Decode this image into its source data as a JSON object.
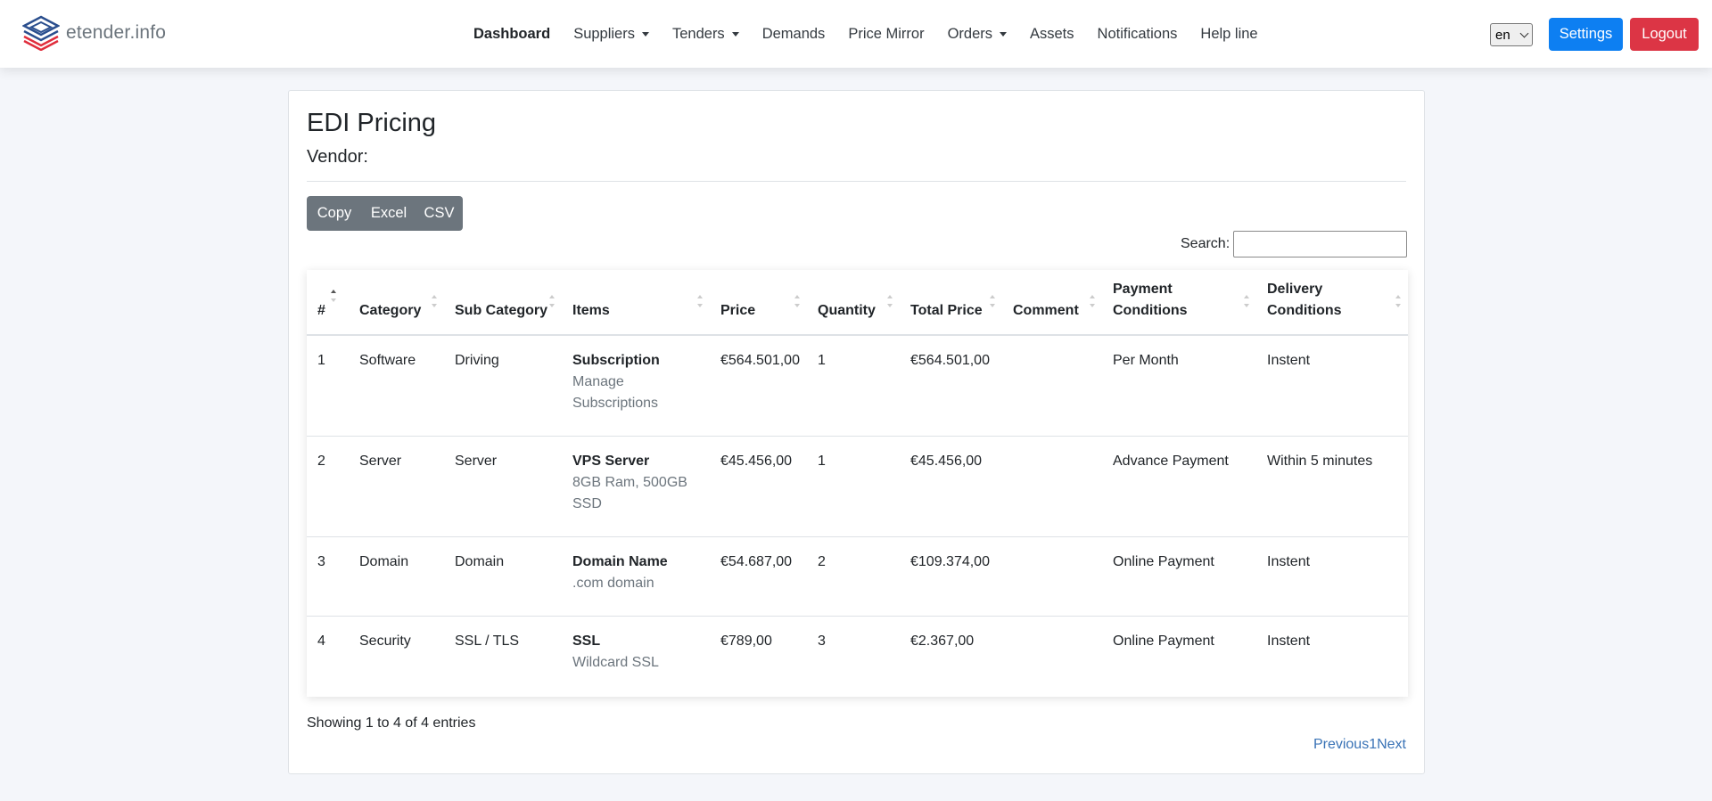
{
  "brand": {
    "name": "etender.info"
  },
  "nav": {
    "items": [
      {
        "label": "Dashboard",
        "active": true,
        "dropdown": false
      },
      {
        "label": "Suppliers",
        "active": false,
        "dropdown": true
      },
      {
        "label": "Tenders",
        "active": false,
        "dropdown": true
      },
      {
        "label": "Demands",
        "active": false,
        "dropdown": false
      },
      {
        "label": "Price Mirror",
        "active": false,
        "dropdown": false
      },
      {
        "label": "Orders",
        "active": false,
        "dropdown": true
      },
      {
        "label": "Assets",
        "active": false,
        "dropdown": false
      },
      {
        "label": "Notifications",
        "active": false,
        "dropdown": false
      },
      {
        "label": "Help line",
        "active": false,
        "dropdown": false
      }
    ],
    "language": "en",
    "settings_label": "Settings",
    "logout_label": "Logout"
  },
  "page": {
    "title": "EDI Pricing",
    "vendor_label": "Vendor:",
    "export_buttons": [
      "Copy",
      "Excel",
      "CSV"
    ],
    "search_label": "Search:",
    "search_value": ""
  },
  "table": {
    "columns": [
      "#",
      "Category",
      "Sub Category",
      "Items",
      "Price",
      "Quantity",
      "Total Price",
      "Comment",
      "Payment Conditions",
      "Delivery Conditions"
    ],
    "rows": [
      {
        "no": "1",
        "category": "Software",
        "sub_category": "Driving",
        "item_name": "Subscription",
        "item_desc": "Manage Subscriptions",
        "price": "€564.501,00",
        "quantity": "1",
        "total": "€564.501,00",
        "comment": "",
        "payment": "Per Month",
        "delivery": "Instent"
      },
      {
        "no": "2",
        "category": "Server",
        "sub_category": "Server",
        "item_name": "VPS Server",
        "item_desc": "8GB Ram, 500GB SSD",
        "price": "€45.456,00",
        "quantity": "1",
        "total": "€45.456,00",
        "comment": "",
        "payment": "Advance Payment",
        "delivery": "Within 5 minutes"
      },
      {
        "no": "3",
        "category": "Domain",
        "sub_category": "Domain",
        "item_name": "Domain Name",
        "item_desc": ".com domain",
        "price": "€54.687,00",
        "quantity": "2",
        "total": "€109.374,00",
        "comment": "",
        "payment": "Online Payment",
        "delivery": "Instent"
      },
      {
        "no": "4",
        "category": "Security",
        "sub_category": "SSL / TLS",
        "item_name": "SSL",
        "item_desc": "Wildcard SSL",
        "price": "€789,00",
        "quantity": "3",
        "total": "€2.367,00",
        "comment": "",
        "payment": "Online Payment",
        "delivery": "Instent"
      }
    ]
  },
  "footer": {
    "info": "Showing 1 to 4 of 4 entries",
    "previous": "Previous",
    "page": "1",
    "next": "Next"
  },
  "colors": {
    "primary": "#0d7ff2",
    "danger": "#dc3545",
    "secondary": "#6c757d",
    "link": "#3a73b6"
  }
}
